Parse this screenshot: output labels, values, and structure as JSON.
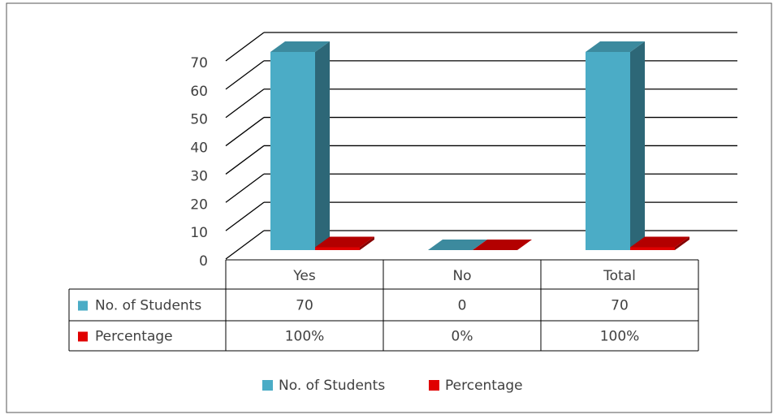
{
  "chart_data": {
    "type": "bar3d",
    "categories": [
      "Yes",
      "No",
      "Total"
    ],
    "series": [
      {
        "name": "No. of Students",
        "color": "#4bacc6",
        "values": [
          70,
          0,
          70
        ],
        "value_labels": [
          "70",
          "0",
          "70"
        ]
      },
      {
        "name": "Percentage",
        "color": "#e00000",
        "values": [
          1,
          0,
          1
        ],
        "value_labels": [
          "100%",
          "0%",
          "100%"
        ]
      }
    ],
    "ylim": [
      0,
      70
    ],
    "yticks": [
      0,
      10,
      20,
      30,
      40,
      50,
      60,
      70
    ],
    "grid": true,
    "legend": "bottom",
    "data_table": true
  }
}
